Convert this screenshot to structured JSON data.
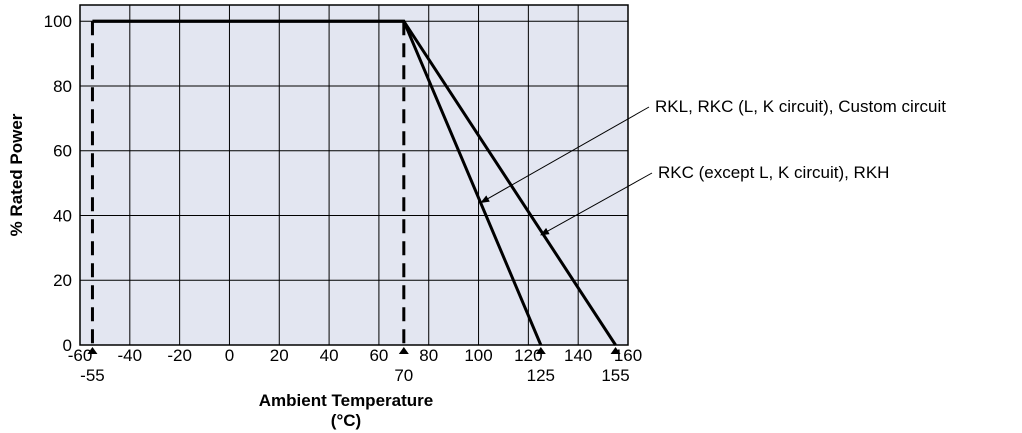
{
  "chart_data": {
    "type": "line",
    "title": "",
    "xlabel": "Ambient Temperature",
    "xlabel_unit": "(°C)",
    "ylabel": "% Rated Power",
    "xlim": [
      -60,
      160
    ],
    "ylim": [
      0,
      105
    ],
    "grid": true,
    "x_ticks": [
      "-60",
      "-40",
      "-20",
      "0",
      "20",
      "40",
      "60",
      "80",
      "100",
      "120",
      "140",
      "160"
    ],
    "y_ticks": [
      "0",
      "20",
      "40",
      "60",
      "80",
      "100"
    ],
    "marked_x": [
      {
        "value": -55,
        "label": "-55"
      },
      {
        "value": 70,
        "label": "70"
      },
      {
        "value": 125,
        "label": "125"
      },
      {
        "value": 155,
        "label": "155"
      }
    ],
    "series": [
      {
        "name": "RKL, RKC (L, K circuit), Custom circuit",
        "x": [
          -55,
          70,
          125
        ],
        "y": [
          100,
          100,
          0
        ]
      },
      {
        "name": "RKC (except L, K circuit), RKH",
        "x": [
          -55,
          70,
          155
        ],
        "y": [
          100,
          100,
          0
        ]
      }
    ],
    "annotations": [
      {
        "text": "RKL, RKC (L, K circuit), Custom circuit",
        "target": [
          101,
          44
        ]
      },
      {
        "text": "RKC (except L, K circuit), RKH",
        "target": [
          125,
          34
        ]
      }
    ],
    "colors": {
      "plot_background": "#e3e6f1",
      "line": "#000000"
    }
  }
}
